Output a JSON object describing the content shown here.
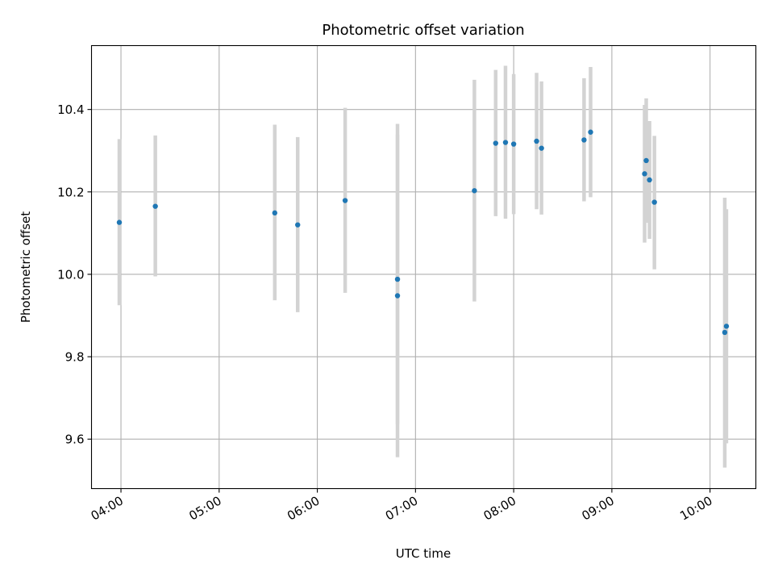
{
  "chart_data": {
    "type": "scatter",
    "title": "Photometric offset variation",
    "xlabel": "UTC time",
    "ylabel": "Photometric offset",
    "x_unit": "UTC time (HH:MM)",
    "xlim": [
      "03:42",
      "10:28"
    ],
    "ylim": [
      9.48,
      10.555
    ],
    "grid": true,
    "x_ticks": [
      "04:00",
      "05:00",
      "06:00",
      "07:00",
      "08:00",
      "09:00",
      "10:00"
    ],
    "y_ticks": [
      9.6,
      9.8,
      10.0,
      10.2,
      10.4
    ],
    "y_tick_labels": [
      "9.6",
      "9.8",
      "10.0",
      "10.2",
      "10.4"
    ],
    "point_color": "#1f77b4",
    "errorbar_color": "#d3d3d3",
    "series": [
      {
        "points": [
          {
            "x": "03:59",
            "y": 10.126,
            "ylow": 9.925,
            "yhigh": 10.328
          },
          {
            "x": "04:21",
            "y": 10.165,
            "ylow": 9.995,
            "yhigh": 10.337
          },
          {
            "x": "05:34",
            "y": 10.149,
            "ylow": 9.937,
            "yhigh": 10.363
          },
          {
            "x": "05:48",
            "y": 10.12,
            "ylow": 9.908,
            "yhigh": 10.333
          },
          {
            "x": "06:17",
            "y": 10.179,
            "ylow": 9.955,
            "yhigh": 10.404
          },
          {
            "x": "06:49",
            "y": 9.988,
            "ylow": 9.637,
            "yhigh": 10.339
          },
          {
            "x": "06:49",
            "y": 9.948,
            "ylow": 9.556,
            "yhigh": 10.365
          },
          {
            "x": "07:36",
            "y": 10.203,
            "ylow": 9.934,
            "yhigh": 10.472
          },
          {
            "x": "07:49",
            "y": 10.318,
            "ylow": 10.141,
            "yhigh": 10.496
          },
          {
            "x": "07:55",
            "y": 10.32,
            "ylow": 10.135,
            "yhigh": 10.506
          },
          {
            "x": "08:00",
            "y": 10.316,
            "ylow": 10.146,
            "yhigh": 10.486
          },
          {
            "x": "08:14",
            "y": 10.323,
            "ylow": 10.158,
            "yhigh": 10.489
          },
          {
            "x": "08:17",
            "y": 10.306,
            "ylow": 10.145,
            "yhigh": 10.468
          },
          {
            "x": "08:43",
            "y": 10.326,
            "ylow": 10.177,
            "yhigh": 10.476
          },
          {
            "x": "08:47",
            "y": 10.345,
            "ylow": 10.187,
            "yhigh": 10.503
          },
          {
            "x": "09:20",
            "y": 10.244,
            "ylow": 10.077,
            "yhigh": 10.411
          },
          {
            "x": "09:21",
            "y": 10.276,
            "ylow": 10.125,
            "yhigh": 10.427
          },
          {
            "x": "09:23",
            "y": 10.229,
            "ylow": 10.086,
            "yhigh": 10.372
          },
          {
            "x": "09:26",
            "y": 10.175,
            "ylow": 10.012,
            "yhigh": 10.336
          },
          {
            "x": "10:09",
            "y": 9.859,
            "ylow": 9.531,
            "yhigh": 10.186
          },
          {
            "x": "10:10",
            "y": 9.874,
            "ylow": 9.59,
            "yhigh": 10.158
          }
        ]
      }
    ]
  }
}
